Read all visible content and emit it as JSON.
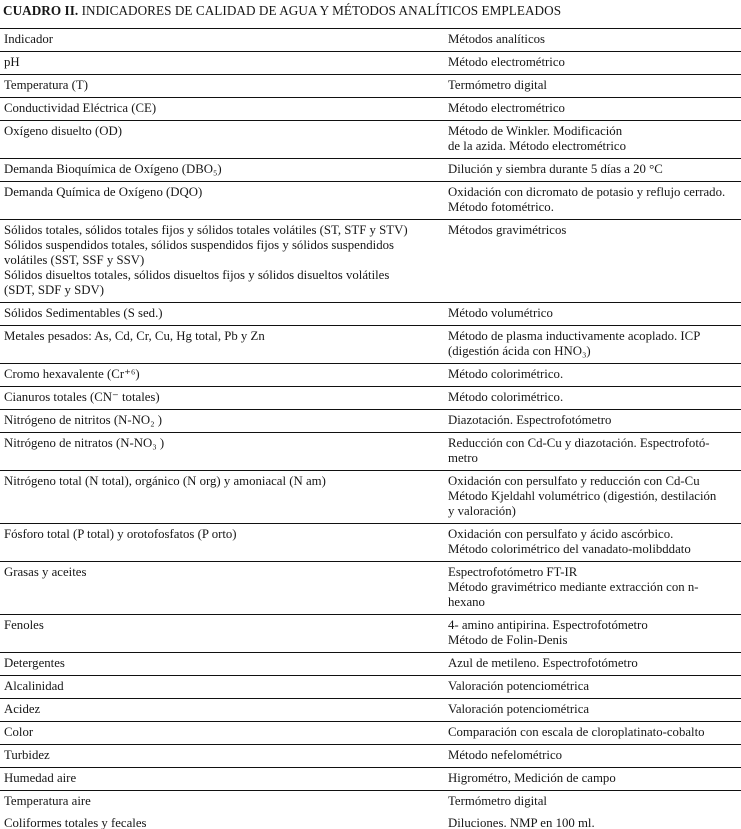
{
  "title": {
    "label": "CUADRO II.",
    "text": " INDICADORES DE CALIDAD DE AGUA Y MÉTODOS ANALÍTICOS EMPLEADOS"
  },
  "table": {
    "header": {
      "indicator": "Indicador",
      "method": "Métodos analíticos"
    },
    "rows": [
      {
        "indicator": "pH",
        "method": "Método electrométrico"
      },
      {
        "indicator": "Temperatura (T)",
        "method": "Termómetro digital"
      },
      {
        "indicator": "Conductividad Eléctrica (CE)",
        "method": "Método electrométrico"
      },
      {
        "indicator": "Oxígeno disuelto (OD)",
        "method": "Método de Winkler. Modificación\nde la azida. Método electrométrico"
      },
      {
        "indicator": "Demanda Bioquímica de Oxígeno (DBO₅)",
        "method": "Dilución y siembra durante 5 días a 20 °C"
      },
      {
        "indicator": "Demanda Química de Oxígeno (DQO)",
        "method": "Oxidación con dicromato de potasio y reflujo cerrado.\nMétodo fotométrico."
      },
      {
        "indicator": "Sólidos totales, sólidos totales fijos y sólidos totales volátiles (ST, STF y STV)\nSólidos suspendidos totales, sólidos suspendidos fijos y sólidos suspendidos\nvolátiles (SST, SSF y SSV)\nSólidos disueltos totales, sólidos disueltos fijos y sólidos disueltos volátiles\n(SDT, SDF y SDV)",
        "method": "Métodos gravimétricos"
      },
      {
        "indicator": "Sólidos Sedimentables (S sed.)",
        "method": "Método volumétrico"
      },
      {
        "indicator": "Metales pesados: As, Cd, Cr, Cu, Hg total, Pb y Zn",
        "method": "Método de plasma inductivamente acoplado. ICP\n(digestión ácida con HNO₃)"
      },
      {
        "indicator": "Cromo hexavalente (Cr⁺⁶)",
        "method": "Método colorimétrico."
      },
      {
        "indicator": "Cianuros totales (CN⁻ totales)",
        "method": "Método colorimétrico."
      },
      {
        "indicator": "Nitrógeno de nitritos (N-NO₂ )",
        "method": "Diazotación. Espectrofotómetro"
      },
      {
        "indicator": "Nitrógeno de nitratos (N-NO₃ )",
        "method": "Reducción con Cd-Cu y diazotación. Espectrofotó-\nmetro"
      },
      {
        "indicator": "Nitrógeno total (N total), orgánico (N org) y amoniacal (N am)",
        "method": "Oxidación con persulfato y reducción con Cd-Cu\nMétodo Kjeldahl volumétrico (digestión, destilación\ny valoración)"
      },
      {
        "indicator": "Fósforo total (P total) y orotofosfatos (P orto)",
        "method": "Oxidación con persulfato y ácido ascórbico.\nMétodo colorimétrico del vanadato-molibddato"
      },
      {
        "indicator": "Grasas y aceites",
        "method": "Espectrofotómetro FT-IR\nMétodo gravimétrico mediante extracción con n-\nhexano"
      },
      {
        "indicator": "Fenoles",
        "method": "4- amino antipirina. Espectrofotómetro\nMétodo de Folin-Denis"
      },
      {
        "indicator": "Detergentes",
        "method": "Azul de metileno. Espectrofotómetro"
      },
      {
        "indicator": "Alcalinidad",
        "method": "Valoración potenciométrica"
      },
      {
        "indicator": "Acidez",
        "method": "Valoración potenciométrica"
      },
      {
        "indicator": "Color",
        "method": "Comparación con escala de cloroplatinato-cobalto"
      },
      {
        "indicator": "Turbidez",
        "method": "Método nefelométrico"
      },
      {
        "indicator": "Humedad aire",
        "method": "Higrométro, Medición de campo"
      },
      {
        "indicator": "Temperatura aire",
        "method": "Termómetro digital",
        "rule_below": false
      },
      {
        "indicator": "Coliformes totales y fecales",
        "method": "Diluciones. NMP en 100 ml."
      }
    ]
  }
}
